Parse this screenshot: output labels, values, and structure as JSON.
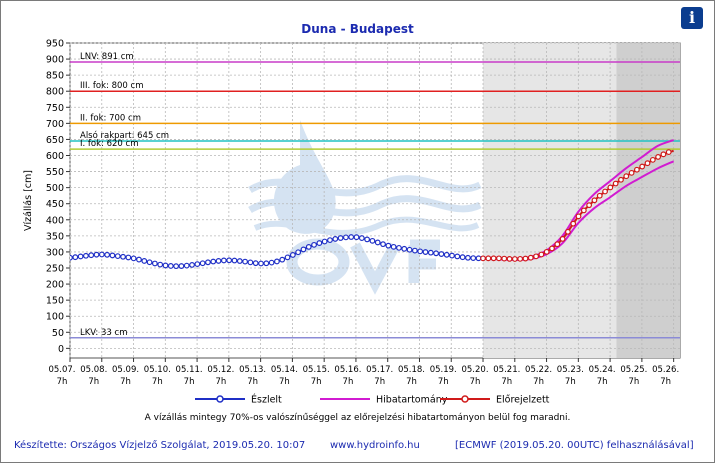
{
  "window": {
    "title": "Duna - Budapest"
  },
  "info_button": {
    "label": "i"
  },
  "colors": {
    "observed": "#1f2fc6",
    "forecast": "#d01a1a",
    "range": "#d11bd1",
    "lnv": "#c83cc8",
    "level3": "#e02020",
    "level2": "#ee9a00",
    "bank": "#22c2c2",
    "level1": "#b2cc33",
    "lkv": "#8b8bd6",
    "watermark": "#7fa9d8"
  },
  "chart_data": {
    "type": "line",
    "title": "Duna - Budapest",
    "ylabel": "Vízállás [cm]",
    "xlabel": "",
    "ylim": [
      -30,
      950
    ],
    "yticks": [
      0,
      50,
      100,
      150,
      200,
      250,
      300,
      350,
      400,
      450,
      500,
      550,
      600,
      650,
      700,
      750,
      800,
      850,
      900,
      950
    ],
    "xticks": [
      {
        "date": "05.07.",
        "hour": "7h"
      },
      {
        "date": "05.08.",
        "hour": "7h"
      },
      {
        "date": "05.09.",
        "hour": "7h"
      },
      {
        "date": "05.10.",
        "hour": "7h"
      },
      {
        "date": "05.11.",
        "hour": "7h"
      },
      {
        "date": "05.12.",
        "hour": "7h"
      },
      {
        "date": "05.13.",
        "hour": "7h"
      },
      {
        "date": "05.14.",
        "hour": "7h"
      },
      {
        "date": "05.15.",
        "hour": "7h"
      },
      {
        "date": "05.16.",
        "hour": "7h"
      },
      {
        "date": "05.17.",
        "hour": "7h"
      },
      {
        "date": "05.18.",
        "hour": "7h"
      },
      {
        "date": "05.19.",
        "hour": "7h"
      },
      {
        "date": "05.20.",
        "hour": "7h"
      },
      {
        "date": "05.21.",
        "hour": "7h"
      },
      {
        "date": "05.22.",
        "hour": "7h"
      },
      {
        "date": "05.23.",
        "hour": "7h"
      },
      {
        "date": "05.24.",
        "hour": "7h"
      },
      {
        "date": "05.25.",
        "hour": "7h"
      },
      {
        "date": "05.26.",
        "hour": "7h"
      }
    ],
    "thresholds": [
      {
        "label": "LNV: 891 cm",
        "value": 891,
        "color_key": "lnv"
      },
      {
        "label": "III. fok: 800 cm",
        "value": 800,
        "color_key": "level3"
      },
      {
        "label": "II. fok: 700 cm",
        "value": 700,
        "color_key": "level2"
      },
      {
        "label": "Alsó rakpart: 645 cm",
        "value": 645,
        "color_key": "bank"
      },
      {
        "label": "I. fok: 620 cm",
        "value": 620,
        "color_key": "level1"
      },
      {
        "label": "LKV: 33 cm",
        "value": 33,
        "color_key": "lkv"
      }
    ],
    "shaded_regions": [
      {
        "from": 13,
        "to": 19.2,
        "shade": "light"
      },
      {
        "from": 17.2,
        "to": 19.2,
        "shade": "dark"
      }
    ],
    "series": [
      {
        "name": "Észlelt",
        "kind": "observed",
        "color_key": "observed",
        "x": [
          0,
          0.5,
          1,
          1.5,
          2,
          2.5,
          3,
          3.5,
          4,
          4.5,
          5,
          5.5,
          6,
          6.5,
          7,
          7.5,
          8,
          8.5,
          9,
          9.5,
          10,
          10.5,
          11,
          11.5,
          12,
          12.5,
          13
        ],
        "y": [
          282,
          288,
          292,
          287,
          280,
          268,
          258,
          256,
          262,
          270,
          274,
          270,
          264,
          270,
          290,
          315,
          332,
          343,
          346,
          335,
          320,
          310,
          302,
          296,
          289,
          282,
          280
        ]
      },
      {
        "name": "Előrejelzett",
        "kind": "forecast",
        "color_key": "forecast",
        "x": [
          13,
          13.5,
          14,
          14.5,
          15,
          15.5,
          16,
          16.5,
          17,
          17.5,
          18,
          18.5,
          19
        ],
        "y": [
          280,
          280,
          278,
          282,
          300,
          340,
          410,
          460,
          500,
          535,
          565,
          595,
          615
        ]
      },
      {
        "name": "Hibatartomány",
        "kind": "range",
        "color_key": "range",
        "x": [
          13,
          13.5,
          14,
          14.5,
          15,
          15.5,
          16,
          16.5,
          17,
          17.5,
          18,
          18.5,
          19
        ],
        "upper": [
          282,
          282,
          280,
          285,
          305,
          350,
          425,
          480,
          520,
          560,
          595,
          630,
          648
        ],
        "lower": [
          278,
          277,
          275,
          278,
          293,
          327,
          390,
          436,
          470,
          505,
          533,
          560,
          582
        ]
      }
    ]
  },
  "note": "A vízállás mintegy 70%-os valószínűséggel az előrejelzési hibatartományon belül fog maradni.",
  "footer": {
    "left": "Készítette: Országos Vízjelző Szolgálat, 2019.05.20. 10:07",
    "middle": "www.hydroinfo.hu",
    "right": "[ECMWF (2019.05.20. 00UTC) felhasználásával]"
  }
}
